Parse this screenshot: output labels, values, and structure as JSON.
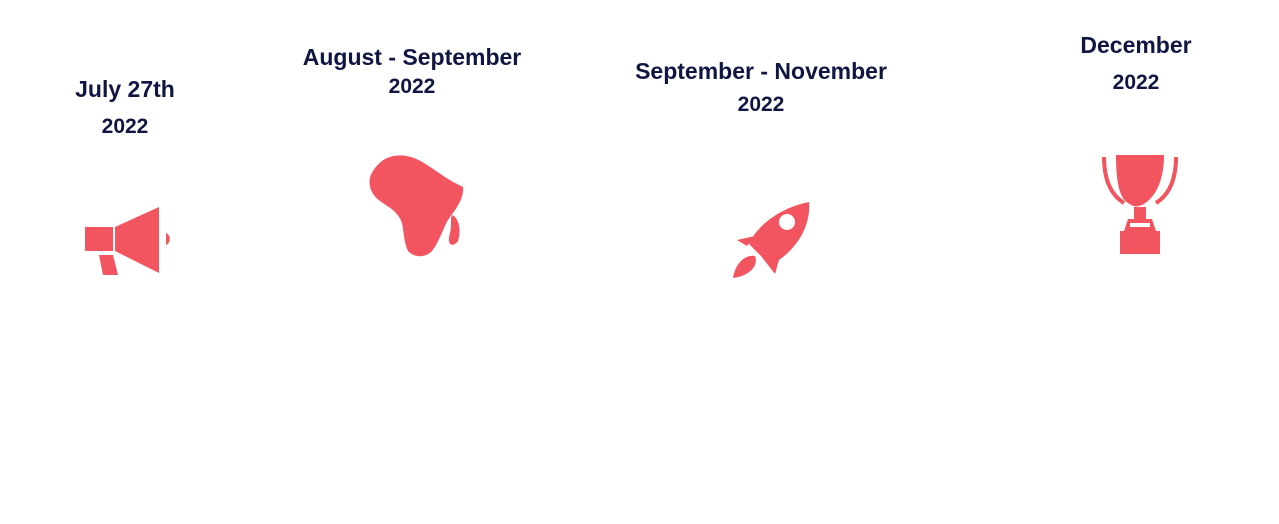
{
  "colors": {
    "text": "#0f1642",
    "accent": "#f35560"
  },
  "timeline": [
    {
      "date_line1": "July 27th",
      "date_line2": "2022",
      "icon": "megaphone-icon"
    },
    {
      "date_line1": "August - September",
      "date_line2": "2022",
      "icon": "africa-map-icon"
    },
    {
      "date_line1": "September - November",
      "date_line2": "2022",
      "icon": "rocket-icon"
    },
    {
      "date_line1": "December",
      "date_line2": "2022",
      "icon": "trophy-icon"
    }
  ]
}
